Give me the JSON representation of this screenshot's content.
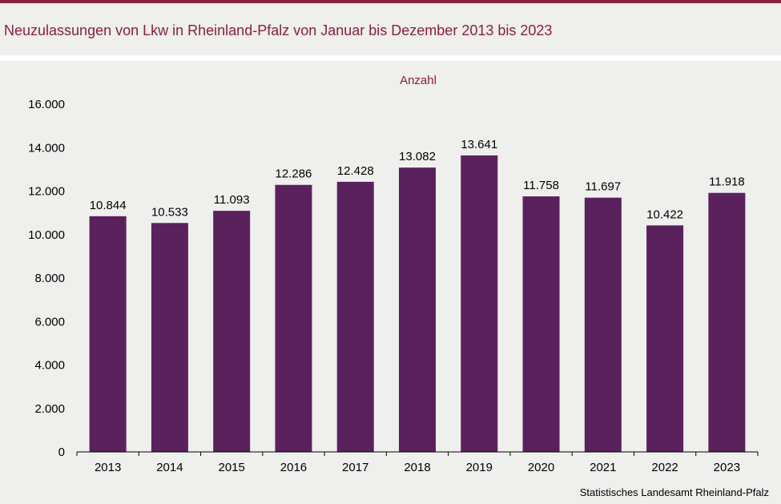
{
  "title": "Neuzulassungen von Lkw in Rheinland-Pfalz von Januar bis Dezember 2013 bis 2023",
  "source": "Statistisches Landesamt Rheinland-Pfalz",
  "colors": {
    "accent": "#8a1e3c",
    "bar": "#5a215d",
    "background": "#efefed"
  },
  "chart_data": {
    "type": "bar",
    "unit_label": "Anzahl",
    "categories": [
      "2013",
      "2014",
      "2015",
      "2016",
      "2017",
      "2018",
      "2019",
      "2020",
      "2021",
      "2022",
      "2023"
    ],
    "values": [
      10844,
      10533,
      11093,
      12286,
      12428,
      13082,
      13641,
      11758,
      11697,
      10422,
      11918
    ],
    "value_labels": [
      "10.844",
      "10.533",
      "11.093",
      "12.286",
      "12.428",
      "13.082",
      "13.641",
      "11.758",
      "11.697",
      "10.422",
      "11.918"
    ],
    "yticks": [
      0,
      2000,
      4000,
      6000,
      8000,
      10000,
      12000,
      14000,
      16000
    ],
    "ytick_labels": [
      "0",
      "2.000",
      "4.000",
      "6.000",
      "8.000",
      "10.000",
      "12.000",
      "14.000",
      "16.000"
    ],
    "ylim": [
      0,
      16000
    ],
    "grid": false,
    "legend": "none"
  }
}
